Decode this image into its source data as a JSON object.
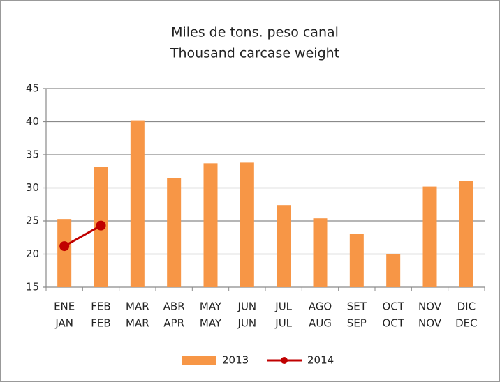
{
  "chart_data": {
    "type": "bar",
    "title": [
      "Miles de tons. peso canal",
      "Thousand carcase weight"
    ],
    "categories": [
      [
        "ENE",
        "JAN"
      ],
      [
        "FEB",
        "FEB"
      ],
      [
        "MAR",
        "MAR"
      ],
      [
        "ABR",
        "APR"
      ],
      [
        "MAY",
        "MAY"
      ],
      [
        "JUN",
        "JUN"
      ],
      [
        "JUL",
        "JUL"
      ],
      [
        "AGO",
        "AUG"
      ],
      [
        "SET",
        "SEP"
      ],
      [
        "OCT",
        "OCT"
      ],
      [
        "NOV",
        "NOV"
      ],
      [
        "DIC",
        "DEC"
      ]
    ],
    "series": [
      {
        "name": "2013",
        "type": "bar",
        "color": "#f79646",
        "values": [
          25.3,
          33.2,
          40.2,
          31.5,
          33.7,
          33.8,
          27.4,
          25.4,
          23.1,
          20.0,
          30.2,
          31.0
        ]
      },
      {
        "name": "2014",
        "type": "line",
        "color": "#c00000",
        "values": [
          21.2,
          24.3,
          null,
          null,
          null,
          null,
          null,
          null,
          null,
          null,
          null,
          null
        ]
      }
    ],
    "ylim": [
      15,
      45
    ],
    "yticks": [
      15,
      20,
      25,
      30,
      35,
      40,
      45
    ],
    "grid": true,
    "legend": "bottom"
  }
}
